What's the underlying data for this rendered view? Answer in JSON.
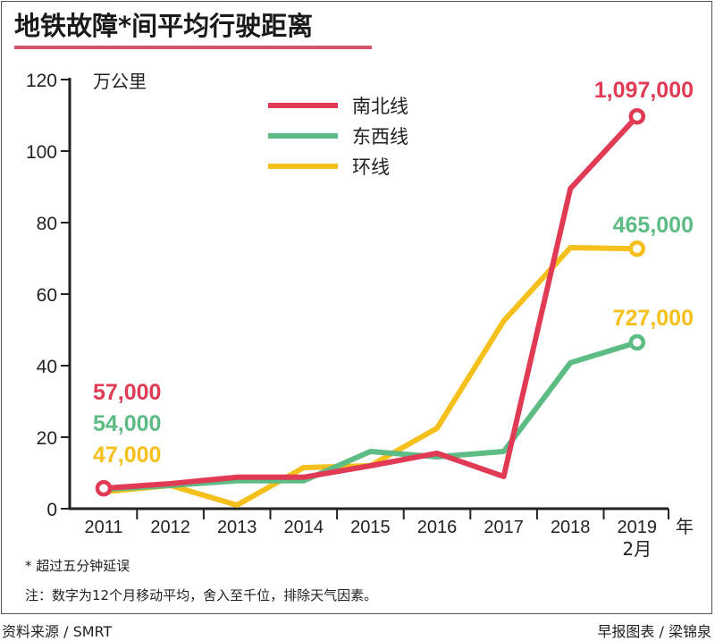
{
  "title": "地铁故障*间平均行驶距离",
  "footnote": "* 超过五分钟延误",
  "note": "注：数字为12个月移动平均，舍入至千位，排除天气因素。",
  "source": "资料来源 / SMRT",
  "credit": "早报图表 / 梁锦泉",
  "chart_data": {
    "type": "line",
    "title": "地铁故障*间平均行驶距离",
    "ylabel": "万公里",
    "xlabel": "年",
    "ylim": [
      0,
      120
    ],
    "yticks": [
      "0",
      "20",
      "40",
      "60",
      "80",
      "100",
      "120"
    ],
    "categories": [
      "2011",
      "2012",
      "2013",
      "2014",
      "2015",
      "2016",
      "2017",
      "2018",
      "2019"
    ],
    "last_category_sub": "2月",
    "grid": false,
    "legend": "top-center",
    "series": [
      {
        "name": "南北线",
        "color": "#e03a55",
        "values": [
          5.7,
          7,
          8.8,
          8.8,
          12,
          15.5,
          9,
          89.5,
          109.7
        ],
        "start_label": "57,000",
        "end_label": "1,097,000"
      },
      {
        "name": "东西线",
        "color": "#5dbb84",
        "values": [
          5.4,
          6.5,
          7.8,
          7.8,
          16,
          14.5,
          16,
          40.8,
          46.5
        ],
        "start_label": "54,000",
        "end_label": "465,000"
      },
      {
        "name": "环线",
        "color": "#f5bf1c",
        "values": [
          4.7,
          6.5,
          1,
          11.5,
          12,
          22.5,
          52.5,
          73,
          72.7
        ],
        "start_label": "47,000",
        "end_label": "727,000"
      }
    ]
  }
}
